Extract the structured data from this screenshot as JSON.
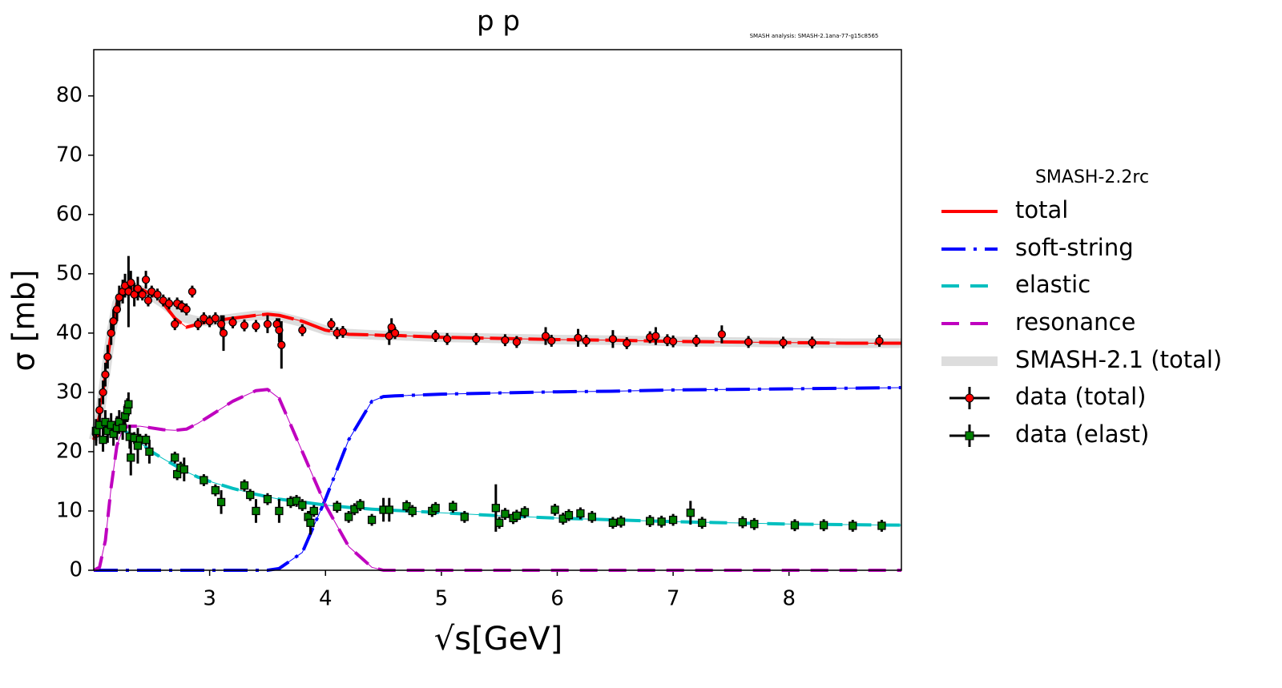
{
  "chart_data": {
    "type": "line",
    "title": "p p",
    "watermark": "SMASH analysis: SMASH-2.1ana-77-g15c8565",
    "xlabel": "√s[GeV]",
    "ylabel": "σ [mb]",
    "legend_title": "SMASH-2.2rc",
    "legend": "right",
    "xlim": [
      2.0,
      8.97
    ],
    "ylim": [
      0,
      87.8
    ],
    "xticks": [
      3,
      4,
      5,
      6,
      7,
      8
    ],
    "yticks": [
      0,
      10,
      20,
      30,
      40,
      50,
      60,
      70,
      80
    ],
    "x": [
      2.0,
      2.05,
      2.1,
      2.15,
      2.2,
      2.25,
      2.3,
      2.4,
      2.5,
      2.6,
      2.7,
      2.8,
      2.9,
      3.0,
      3.2,
      3.4,
      3.5,
      3.6,
      3.8,
      4.0,
      4.2,
      4.4,
      4.5,
      4.6,
      5,
      5.5,
      6,
      6.5,
      7,
      7.5,
      8,
      8.5,
      8.97
    ],
    "series": [
      {
        "name": "total",
        "color": "#ff0000",
        "style": "solid",
        "values": [
          22,
          26,
          33,
          40,
          45,
          47,
          47.5,
          47.5,
          46.5,
          45,
          42.5,
          41,
          41.5,
          42,
          42.5,
          43,
          43.2,
          43,
          42,
          40.5,
          39.8,
          39.7,
          39.6,
          39.6,
          39.3,
          39.1,
          38.9,
          38.8,
          38.6,
          38.5,
          38.4,
          38.3,
          38.3
        ]
      },
      {
        "name": "soft-string",
        "color": "#0000ff",
        "style": "dashdot",
        "values": [
          0,
          0,
          0,
          0,
          0,
          0,
          0,
          0,
          0,
          0,
          0,
          0,
          0,
          0,
          0,
          0,
          0,
          0.3,
          3,
          12,
          22,
          28.5,
          29.3,
          29.4,
          29.7,
          29.9,
          30.1,
          30.2,
          30.4,
          30.5,
          30.6,
          30.7,
          30.8
        ]
      },
      {
        "name": "elastic",
        "color": "#00bfbf",
        "style": "dashed",
        "values": [
          24,
          24.2,
          24.3,
          24.3,
          24.2,
          23.8,
          23,
          21.5,
          20,
          18.8,
          17.7,
          16.6,
          15.7,
          15,
          13.8,
          12.8,
          12.4,
          12,
          11.5,
          11,
          10.6,
          10.3,
          10.2,
          10.1,
          9.7,
          9.2,
          8.8,
          8.5,
          8.2,
          8.0,
          7.8,
          7.7,
          7.6
        ]
      },
      {
        "name": "resonance",
        "color": "#bf00bf",
        "style": "dashed",
        "values": [
          0,
          0.5,
          5,
          14,
          21,
          23.8,
          24.3,
          24.3,
          24,
          23.7,
          23.6,
          23.8,
          24.8,
          26,
          28.5,
          30.3,
          30.5,
          29,
          20,
          11,
          4,
          0.5,
          0,
          0,
          0,
          0,
          0,
          0,
          0,
          0,
          0,
          0,
          0
        ]
      },
      {
        "name": "SMASH-2.1 (total)",
        "color": "#dddddd",
        "style": "band",
        "values": [
          22,
          26,
          33,
          40,
          45,
          47,
          47.5,
          47.3,
          46.3,
          45,
          43.5,
          42.5,
          42,
          42,
          42.5,
          43,
          43,
          42.8,
          41.8,
          40.5,
          39.9,
          39.7,
          39.6,
          39.6,
          39.3,
          39.1,
          38.9,
          38.8,
          38.6,
          38.5,
          38.4,
          38.3,
          38.3
        ]
      },
      {
        "name": "data (total)",
        "color": "#ff0000",
        "marker": "circle",
        "x": [
          2.02,
          2.05,
          2.08,
          2.1,
          2.12,
          2.15,
          2.17,
          2.2,
          2.22,
          2.25,
          2.27,
          2.3,
          2.32,
          2.35,
          2.38,
          2.42,
          2.45,
          2.47,
          2.5,
          2.55,
          2.6,
          2.65,
          2.7,
          2.72,
          2.76,
          2.8,
          2.85,
          2.9,
          2.95,
          3.0,
          3.05,
          3.1,
          3.12,
          3.2,
          3.3,
          3.4,
          3.5,
          3.58,
          3.6,
          3.62,
          3.8,
          4.05,
          4.1,
          4.15,
          4.55,
          4.57,
          4.6,
          4.95,
          5.05,
          5.3,
          5.55,
          5.65,
          5.9,
          5.95,
          6.18,
          6.25,
          6.48,
          6.6,
          6.8,
          6.85,
          6.95,
          7.0,
          7.2,
          7.42,
          7.65,
          7.95,
          8.2,
          8.78
        ],
        "values": [
          23,
          27,
          30,
          33,
          36,
          40,
          42,
          44,
          46,
          47,
          48,
          47,
          48.5,
          46.5,
          47.5,
          46.5,
          49,
          45.5,
          47,
          46.5,
          45.5,
          45,
          41.5,
          45,
          44.5,
          44,
          47,
          41.5,
          42.5,
          42,
          42.5,
          41.5,
          40,
          41.8,
          41.3,
          41.2,
          41.5,
          41.5,
          40.5,
          38,
          40.5,
          41.5,
          40,
          40.2,
          39.5,
          41,
          40,
          39.5,
          39,
          39,
          38.8,
          38.5,
          39.5,
          38.7,
          39.2,
          38.7,
          39,
          38.3,
          39.3,
          39.5,
          38.8,
          38.6,
          38.7,
          39.8,
          38.5,
          38.4,
          38.4,
          38.7
        ],
        "errors": [
          2,
          2,
          2,
          2,
          2,
          2,
          2,
          2,
          2,
          2,
          2,
          6,
          2,
          2,
          2,
          1,
          1.5,
          1,
          1,
          1,
          1,
          1,
          1,
          1,
          1,
          1,
          1,
          1,
          1,
          1,
          1,
          1.5,
          3,
          1,
          1,
          1,
          1.5,
          1,
          2,
          4,
          1,
          1,
          1,
          1,
          1.5,
          1.5,
          1,
          1,
          1,
          1,
          1,
          1,
          1.5,
          1,
          1.5,
          1,
          1.5,
          1,
          1,
          1.5,
          1,
          1,
          1,
          1.5,
          1,
          1,
          1,
          1
        ]
      },
      {
        "name": "data (elast)",
        "color": "#008000",
        "marker": "square",
        "x": [
          2.02,
          2.05,
          2.08,
          2.1,
          2.12,
          2.15,
          2.17,
          2.2,
          2.22,
          2.25,
          2.27,
          2.29,
          2.3,
          2.31,
          2.35,
          2.4,
          2.45,
          2.48,
          2.32,
          2.38,
          2.7,
          2.72,
          2.75,
          2.78,
          2.95,
          3.05,
          3.1,
          3.3,
          3.35,
          3.4,
          3.5,
          3.6,
          3.7,
          3.75,
          3.8,
          3.85,
          3.87,
          3.9,
          4.1,
          4.2,
          4.25,
          4.3,
          4.4,
          4.5,
          4.55,
          4.7,
          4.75,
          4.92,
          4.95,
          5.1,
          5.2,
          5.47,
          5.5,
          5.55,
          5.62,
          5.65,
          5.72,
          5.98,
          6.05,
          6.1,
          6.2,
          6.3,
          6.48,
          6.55,
          6.8,
          6.9,
          7.0,
          7.15,
          7.25,
          7.6,
          7.7,
          8.05,
          8.3,
          8.55,
          8.8
        ],
        "values": [
          23.5,
          24.5,
          22,
          25,
          23.5,
          24.5,
          23,
          24,
          25,
          24,
          26,
          27,
          28,
          22.5,
          22.3,
          22,
          22,
          20,
          19,
          21,
          19,
          16.2,
          17.3,
          17,
          15.2,
          13.5,
          11.5,
          14.3,
          12.7,
          10,
          12,
          10,
          11.5,
          11.7,
          11,
          9,
          8,
          10,
          10.7,
          9,
          10.3,
          11,
          8.5,
          10.2,
          10.2,
          10.8,
          10,
          10,
          10.5,
          10.7,
          9,
          10.5,
          8,
          9.5,
          8.8,
          9.2,
          9.8,
          10.2,
          8.7,
          9.3,
          9.6,
          9,
          8,
          8.2,
          8.3,
          8.2,
          8.5,
          9.7,
          8,
          8.1,
          7.8,
          7.6,
          7.6,
          7.5,
          7.5
        ],
        "errors": [
          2,
          2,
          2,
          2,
          2,
          2,
          2,
          2,
          2,
          2,
          2,
          2,
          2,
          2,
          1,
          1,
          1,
          2,
          3,
          3,
          1,
          1,
          1,
          2,
          1,
          1,
          2,
          1,
          1,
          2,
          1,
          2,
          1,
          1,
          1,
          1,
          2,
          1,
          1,
          1,
          1,
          1,
          1,
          2,
          2,
          1,
          1,
          1,
          1,
          1,
          1,
          4,
          1,
          1,
          1,
          1,
          1,
          1,
          1,
          1,
          1,
          1,
          1,
          1,
          1,
          1,
          1,
          2,
          1,
          1,
          1,
          1,
          1,
          1,
          1
        ]
      }
    ]
  }
}
